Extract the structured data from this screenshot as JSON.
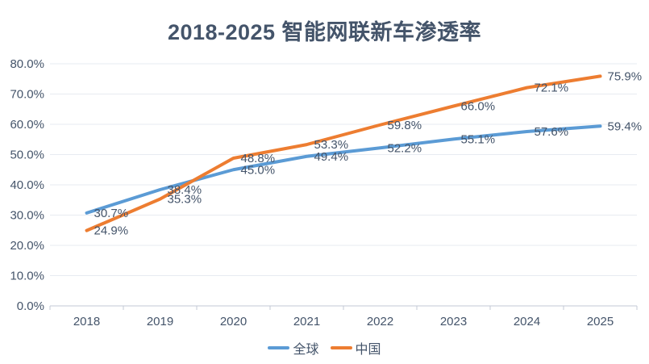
{
  "chart_data": {
    "type": "line",
    "title": "2018-2025 智能网联新车渗透率",
    "categories": [
      "2018",
      "2019",
      "2020",
      "2021",
      "2022",
      "2023",
      "2024",
      "2025"
    ],
    "series": [
      {
        "name": "全球",
        "color": "#5B9BD5",
        "values": [
          30.7,
          38.4,
          45.0,
          49.4,
          52.2,
          55.1,
          57.6,
          59.4
        ]
      },
      {
        "name": "中国",
        "color": "#ED7D31",
        "values": [
          24.9,
          35.3,
          48.8,
          53.3,
          59.8,
          66.0,
          72.1,
          75.9
        ]
      }
    ],
    "ylim": [
      0,
      80
    ],
    "ytick_step": 10,
    "ytick_labels": [
      "0.0%",
      "10.0%",
      "20.0%",
      "30.0%",
      "40.0%",
      "50.0%",
      "60.0%",
      "70.0%",
      "80.0%"
    ],
    "data_label_format": "one-decimal-percent",
    "grid": true,
    "data_labels": true,
    "legend_position": "bottom",
    "styles": {
      "title_color": "#44546A",
      "label_color": "#44546A",
      "gridline_color": "#E7EBF1",
      "axis_color": "#C3CAD4",
      "background": "#FFFFFF"
    }
  }
}
